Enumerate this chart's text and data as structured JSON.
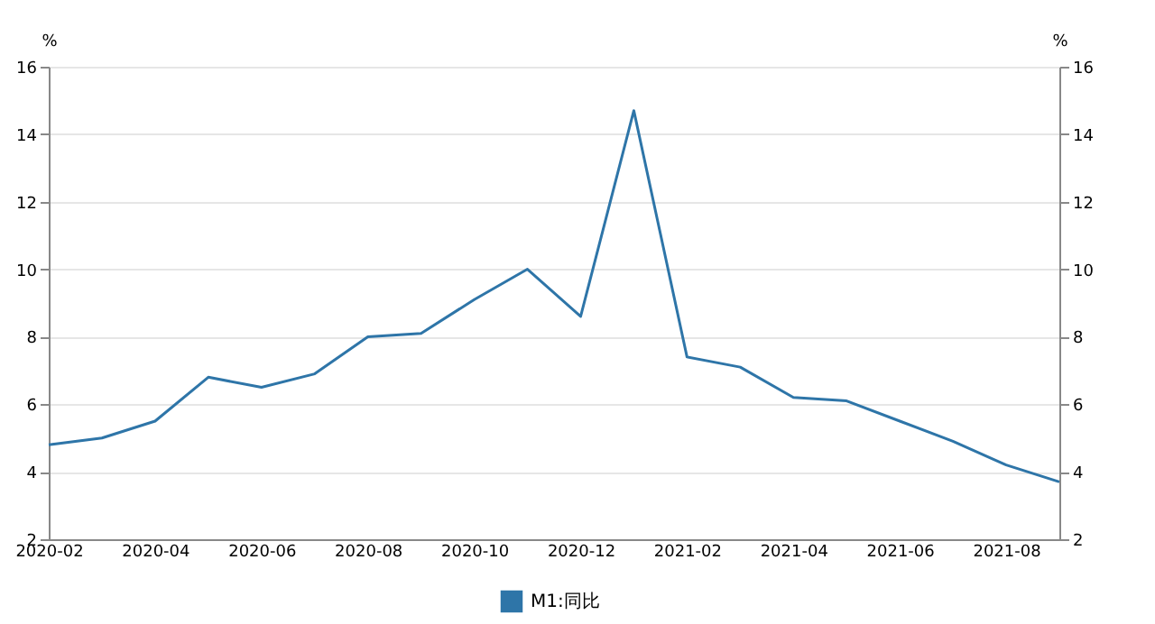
{
  "chart_data": {
    "type": "line",
    "categories": [
      "2020-02",
      null,
      "2020-04",
      null,
      "2020-06",
      null,
      "2020-08",
      null,
      "2020-10",
      null,
      "2020-12",
      null,
      "2021-02",
      null,
      "2021-04",
      null,
      "2021-06",
      null,
      "2021-08",
      null
    ],
    "series": [
      {
        "name": "M1:同比",
        "color": "#2e75a8",
        "values": [
          4.8,
          5.0,
          5.5,
          6.8,
          6.5,
          6.9,
          8.0,
          8.1,
          9.1,
          10.0,
          8.6,
          14.7,
          7.4,
          7.1,
          6.2,
          6.1,
          5.5,
          4.9,
          4.2,
          3.7
        ]
      }
    ],
    "ylabel": "%",
    "y2label": "%",
    "ylim": [
      2,
      16
    ],
    "yticks": [
      2,
      4,
      6,
      8,
      10,
      12,
      14,
      16
    ],
    "y2lim": [
      2,
      16
    ],
    "y2ticks": [
      2,
      4,
      6,
      8,
      10,
      12,
      14,
      16
    ],
    "grid": "y",
    "legend": "bottom",
    "marker": "none",
    "line_style": "solid"
  }
}
